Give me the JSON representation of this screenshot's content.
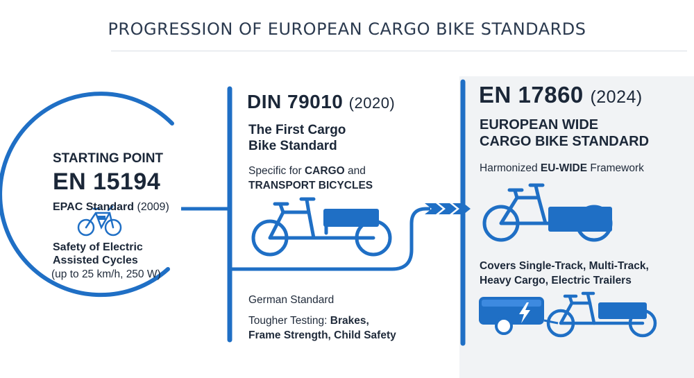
{
  "title": "PROGRESSION OF EUROPEAN CARGO BIKE STANDARDS",
  "colors": {
    "accent": "#1f6fc5",
    "dark": "#1b2738",
    "panel": "#f1f3f5"
  },
  "stage1": {
    "heading": "STARTING POINT",
    "standard": "EN 15194",
    "label": "EPAC Standard",
    "year": "(2009)",
    "desc_line1": "Safety of Electric",
    "desc_line2": "Assisted Cycles",
    "desc_line3": "(up to 25 km/h, 250 W)",
    "icon": "e-bike-icon"
  },
  "stage2": {
    "standard": "DIN 79010",
    "year": "(2020)",
    "subtitle_line1": "The First Cargo",
    "subtitle_line2": "Bike Standard",
    "spec_prefix": "Specific for ",
    "spec_bold1": "CARGO",
    "spec_and": " and",
    "spec_bold2": "TRANSPORT BICYCLES",
    "origin": "German Standard",
    "testing_prefix": "Tougher Testing: ",
    "testing_bold1": "Brakes,",
    "testing_bold2": "Frame Strength, Child Safety",
    "icon": "cargo-bike-icon"
  },
  "stage3": {
    "standard": "EN 17860",
    "year": "(2024)",
    "subtitle_line1": "EUROPEAN WIDE",
    "subtitle_line2": "CARGO BIKE STANDARD",
    "framework_prefix": "Harmonized ",
    "framework_bold": "EU-WIDE",
    "framework_suffix": " Framework",
    "covers_line1": "Covers Single-Track, Multi-Track,",
    "covers_line2": "Heavy Cargo, Electric Trailers",
    "icons": [
      "cargo-trike-icon",
      "electric-trailer-icon",
      "cargo-bike-icon"
    ]
  }
}
